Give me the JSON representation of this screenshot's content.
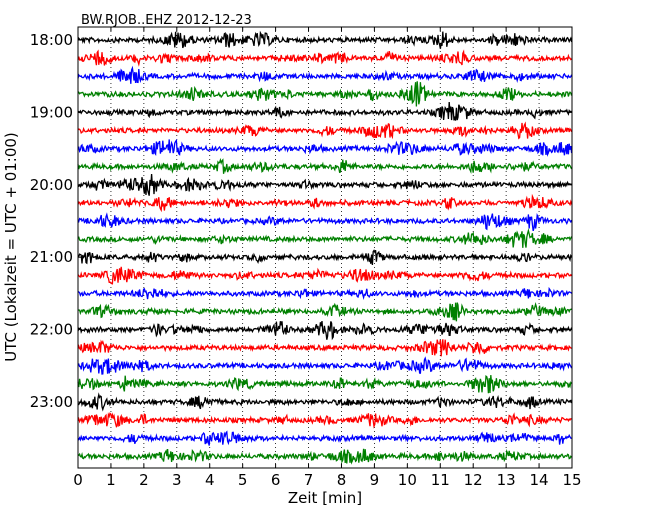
{
  "chart_data": {
    "type": "line",
    "subtype": "seismogram-dayplot",
    "title": "BW.RJOB..EHZ 2012-12-23",
    "xlabel": "Zeit  [min]",
    "ylabel": "UTC (Lokalzeit = UTC + 01:00)",
    "xlim": [
      0,
      15
    ],
    "x_ticks": [
      "0",
      "1",
      "2",
      "3",
      "4",
      "5",
      "6",
      "7",
      "8",
      "9",
      "10",
      "11",
      "12",
      "13",
      "14",
      "15"
    ],
    "y_ticks": [
      "18:00",
      "19:00",
      "20:00",
      "21:00",
      "22:00",
      "23:00"
    ],
    "traces_per_hour": 4,
    "trace_minutes": 15,
    "trace_colors": [
      "#000000",
      "#ff0000",
      "#0000ff",
      "#008000"
    ],
    "grid": "vertical dotted",
    "trace_count": 24
  }
}
